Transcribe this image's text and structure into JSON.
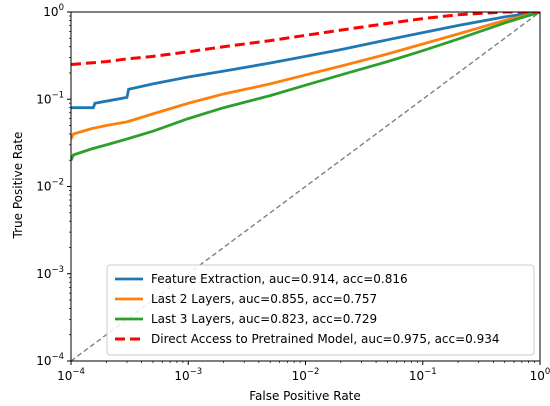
{
  "chart_data": {
    "type": "line",
    "xscale": "log",
    "yscale": "log",
    "xlim": [
      0.0001,
      1
    ],
    "ylim": [
      0.0001,
      1
    ],
    "xlabel": "False Positive Rate",
    "ylabel": "True Positive Rate",
    "x_ticks": [
      {
        "value": 0.0001,
        "base": "10",
        "exp": "−4"
      },
      {
        "value": 0.001,
        "base": "10",
        "exp": "−3"
      },
      {
        "value": 0.01,
        "base": "10",
        "exp": "−2"
      },
      {
        "value": 0.1,
        "base": "10",
        "exp": "−1"
      },
      {
        "value": 1,
        "base": "10",
        "exp": "0"
      }
    ],
    "y_ticks": [
      {
        "value": 0.0001,
        "base": "10",
        "exp": "−4"
      },
      {
        "value": 0.001,
        "base": "10",
        "exp": "−3"
      },
      {
        "value": 0.01,
        "base": "10",
        "exp": "−2"
      },
      {
        "value": 0.1,
        "base": "10",
        "exp": "−1"
      },
      {
        "value": 1,
        "base": "10",
        "exp": "0"
      }
    ],
    "legend_position": "lower-right",
    "series": [
      {
        "name": "Feature Extraction, auc=0.914, acc=0.816",
        "color": "#1f77b4",
        "dash": "solid",
        "x": [
          0.0001,
          0.000155,
          0.00016,
          0.0002,
          0.0003,
          0.00031,
          0.0005,
          0.001,
          0.002,
          0.005,
          0.01,
          0.02,
          0.05,
          0.1,
          0.2,
          0.5,
          1
        ],
        "y": [
          0.08,
          0.08,
          0.09,
          0.095,
          0.105,
          0.13,
          0.15,
          0.18,
          0.21,
          0.26,
          0.31,
          0.37,
          0.48,
          0.58,
          0.7,
          0.88,
          1.0
        ]
      },
      {
        "name": "Last 2 Layers, auc=0.855, acc=0.757",
        "color": "#ff7f0e",
        "dash": "solid",
        "x": [
          0.0001,
          0.000105,
          0.00015,
          0.0002,
          0.0003,
          0.0005,
          0.001,
          0.002,
          0.005,
          0.01,
          0.02,
          0.05,
          0.1,
          0.2,
          0.5,
          1
        ],
        "y": [
          0.035,
          0.04,
          0.046,
          0.05,
          0.055,
          0.068,
          0.09,
          0.115,
          0.15,
          0.19,
          0.24,
          0.33,
          0.43,
          0.56,
          0.8,
          1.0
        ]
      },
      {
        "name": "Last 3 Layers, auc=0.823, acc=0.729",
        "color": "#2ca02c",
        "dash": "solid",
        "x": [
          0.0001,
          0.000105,
          0.00015,
          0.0002,
          0.0003,
          0.0005,
          0.001,
          0.002,
          0.005,
          0.01,
          0.02,
          0.05,
          0.1,
          0.2,
          0.5,
          1
        ],
        "y": [
          0.02,
          0.023,
          0.027,
          0.03,
          0.035,
          0.043,
          0.06,
          0.08,
          0.11,
          0.145,
          0.19,
          0.27,
          0.36,
          0.49,
          0.75,
          1.0
        ]
      },
      {
        "name": "Direct Access to Pretrained Model, auc=0.975, acc=0.934",
        "color": "#ff0000",
        "dash": "dashed",
        "x": [
          0.0001,
          0.0002,
          0.0003,
          0.0005,
          0.001,
          0.002,
          0.005,
          0.01,
          0.02,
          0.05,
          0.1,
          0.2,
          0.5,
          1
        ],
        "y": [
          0.25,
          0.27,
          0.29,
          0.31,
          0.35,
          0.4,
          0.47,
          0.54,
          0.62,
          0.74,
          0.84,
          0.93,
          1.0,
          1.0
        ]
      }
    ],
    "diagonal": {
      "color": "#808080",
      "dash": "dashed"
    }
  }
}
